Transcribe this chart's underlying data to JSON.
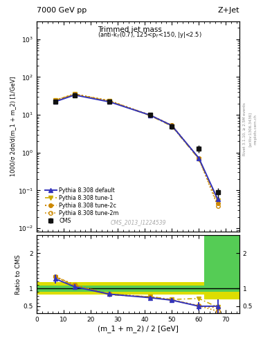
{
  "title_left": "7000 GeV pp",
  "title_right": "Z+Jet",
  "annotation_main": "Trimmed jet mass",
  "annotation_sub": "(anti-k$_T$(0.7), 125<p$_T$<150, |y|<2.5)",
  "cms_label": "CMS_2013_I1224539",
  "rivet_label": "Rivet 3.1.10, ≥ 2.5M events",
  "arxiv_label": "[arXiv:1306.3436]",
  "mcplots_label": "mcplots.cern.ch",
  "ylabel_main": "1000/σ 2dσ/d(m_1 + m_2) [1/GeV]",
  "ylabel_ratio": "Ratio to CMS",
  "xlabel": "(m_1 + m_2) / 2 [GeV]",
  "x_data": [
    7,
    14,
    27,
    42,
    50,
    60,
    67
  ],
  "cms_y": [
    22,
    33,
    22,
    10,
    5,
    1.3,
    0.09
  ],
  "cms_yerr_lo": [
    2,
    3,
    2,
    1.5,
    0.8,
    0.3,
    0.025
  ],
  "cms_yerr_hi": [
    2,
    3,
    2,
    1.5,
    0.8,
    0.3,
    0.025
  ],
  "pythia_default_x": [
    7,
    14,
    27,
    42,
    50,
    60,
    67
  ],
  "pythia_default_y": [
    22.5,
    33.5,
    22,
    9.8,
    5.2,
    0.72,
    0.058
  ],
  "pythia_tune1_x": [
    7,
    14,
    27,
    42,
    50,
    60,
    67
  ],
  "pythia_tune1_y": [
    24,
    35,
    23,
    9.5,
    5.0,
    0.68,
    0.055
  ],
  "pythia_tune2c_x": [
    7,
    14,
    27,
    42,
    50,
    60,
    67
  ],
  "pythia_tune2c_y": [
    24.5,
    35.5,
    23.5,
    9.8,
    5.3,
    0.7,
    0.045
  ],
  "pythia_tune2m_x": [
    7,
    14,
    27,
    42,
    50,
    60,
    67
  ],
  "pythia_tune2m_y": [
    24.5,
    35.5,
    23.5,
    9.8,
    5.3,
    0.7,
    0.038
  ],
  "ratio_x": [
    7,
    14,
    27,
    42,
    50,
    60,
    67
  ],
  "ratio_default": [
    1.27,
    1.05,
    0.84,
    0.74,
    0.67,
    0.5,
    0.5
  ],
  "ratio_tune1": [
    1.32,
    1.08,
    0.82,
    0.77,
    0.69,
    0.72,
    0.47
  ],
  "ratio_tune2c": [
    1.33,
    1.1,
    0.84,
    0.76,
    0.68,
    0.51,
    0.46
  ],
  "ratio_tune2m": [
    1.33,
    1.1,
    0.84,
    0.76,
    0.68,
    0.51,
    0.36
  ],
  "ratio_default_err": [
    0.12,
    0.08,
    0.06,
    0.06,
    0.06,
    0.12,
    0.2
  ],
  "xbins": [
    0,
    10,
    20,
    32,
    45,
    62,
    75
  ],
  "yellow_lo": [
    0.82,
    0.82,
    0.82,
    0.82,
    0.82,
    0.7
  ],
  "yellow_hi": [
    1.18,
    1.18,
    1.18,
    1.18,
    1.18,
    2.5
  ],
  "green_lo": [
    0.91,
    0.91,
    0.91,
    0.91,
    0.91,
    0.9
  ],
  "green_hi": [
    1.09,
    1.09,
    1.09,
    1.09,
    1.09,
    2.5
  ],
  "color_default": "#3333bb",
  "color_tune1": "#ccaa00",
  "color_tune2c": "#cc8800",
  "color_tune2m": "#cc8800",
  "color_cms": "#111111",
  "color_green_band": "#55cc55",
  "color_yellow_band": "#dddd00",
  "xlim": [
    0,
    75
  ],
  "ylim_main": [
    0.008,
    3000
  ],
  "ylim_ratio": [
    0.3,
    2.5
  ],
  "yticks_ratio": [
    0.5,
    1.0,
    2.0
  ],
  "ytick_labels_ratio": [
    "0.5",
    "1",
    "2"
  ]
}
